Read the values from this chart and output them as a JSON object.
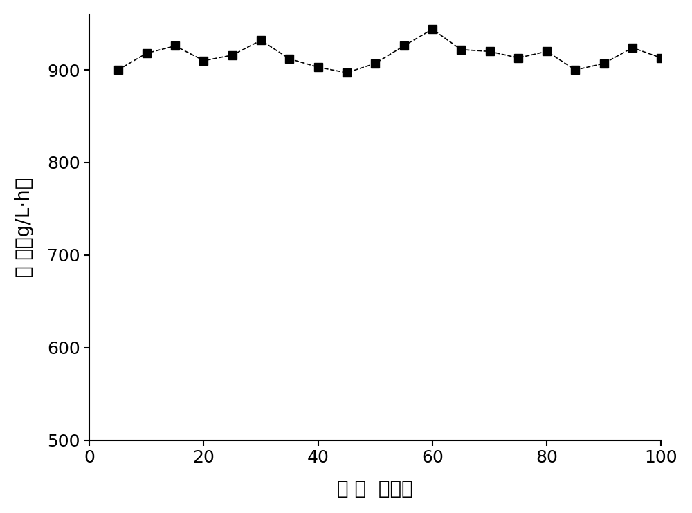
{
  "x": [
    5,
    10,
    15,
    20,
    25,
    30,
    35,
    40,
    45,
    50,
    55,
    60,
    65,
    70,
    75,
    80,
    85,
    90,
    95,
    100
  ],
  "y": [
    900,
    918,
    926,
    910,
    916,
    932,
    912,
    903,
    897,
    907,
    926,
    944,
    922,
    920,
    913,
    920,
    900,
    907,
    924,
    913
  ],
  "xlim": [
    0,
    100
  ],
  "ylim": [
    500,
    960
  ],
  "xticks": [
    0,
    20,
    40,
    60,
    80,
    100
  ],
  "yticks": [
    500,
    600,
    700,
    800,
    900
  ],
  "xlabel": "时 间  （ｈ）",
  "ylabel": "收 率（g/L·h）",
  "line_color": "#000000",
  "marker_color": "#000000",
  "line_style": "--",
  "marker": "s",
  "marker_size": 8,
  "line_width": 1.2,
  "background_color": "#ffffff"
}
